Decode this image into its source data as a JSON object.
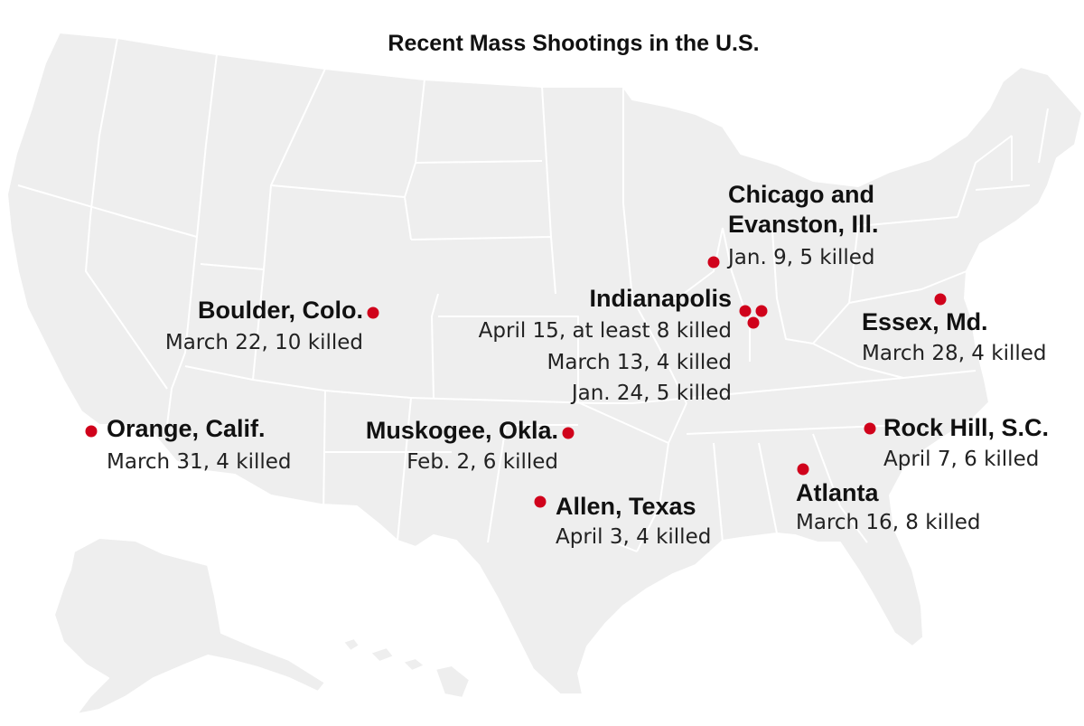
{
  "title": "Recent Mass Shootings in the U.S.",
  "colors": {
    "land": "#eeeeee",
    "border": "#ffffff",
    "marker": "#d0021b",
    "text": "#111111"
  },
  "events": [
    {
      "place": "Chicago and Evanston, Ill.",
      "place_line1": "Chicago and",
      "place_line2": "Evanston, Ill.",
      "details": [
        "Jan. 9, 5 killed"
      ]
    },
    {
      "place": "Boulder, Colo.",
      "details": [
        "March 22, 10 killed"
      ]
    },
    {
      "place": "Indianapolis",
      "details": [
        "April 15, at least 8 killed",
        "March 13, 4 killed",
        "Jan. 24, 5 killed"
      ]
    },
    {
      "place": "Essex, Md.",
      "details": [
        "March 28, 4 killed"
      ]
    },
    {
      "place": "Orange, Calif.",
      "details": [
        "March 31, 4 killed"
      ]
    },
    {
      "place": "Muskogee, Okla.",
      "details": [
        "Feb. 2, 6 killed"
      ]
    },
    {
      "place": "Rock Hill, S.C.",
      "details": [
        "April 7, 6 killed"
      ]
    },
    {
      "place": "Allen, Texas",
      "details": [
        "April 3, 4 killed"
      ]
    },
    {
      "place": "Atlanta",
      "details": [
        "March 16, 8 killed"
      ]
    }
  ]
}
